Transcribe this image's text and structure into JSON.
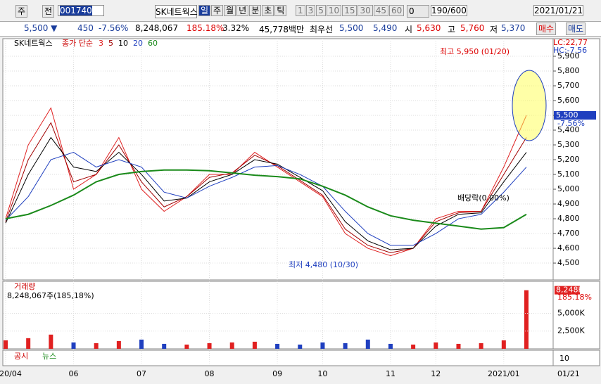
{
  "toolbar": {
    "market": "주",
    "period_type": "전",
    "code": "001740",
    "name": "SK네트웍스",
    "tabs": [
      "일",
      "주",
      "월",
      "년",
      "분",
      "초",
      "틱"
    ],
    "numbers": [
      "1",
      "3",
      "5",
      "10",
      "15",
      "30",
      "45",
      "60"
    ],
    "zero": "0",
    "count": "190/600",
    "date": "2021/01/21"
  },
  "quote": {
    "price": "5,500 ▼",
    "change": "450",
    "change_pct": "-7.56%",
    "volume": "8,248,067",
    "vol_ratio": "185.18%",
    "turnover": "3.32%",
    "amount": "45,778백만",
    "best_label": "최우선",
    "ask": "5,500",
    "bid": "5,490",
    "open_label": "시",
    "open": "5,630",
    "high_label": "고",
    "high": "5,760",
    "low_label": "저",
    "low": "5,370",
    "buy": "매수",
    "sell": "매도"
  },
  "chart_data": [
    {
      "type": "line",
      "title": "SK네트웍스",
      "subtitle": "종가 단순",
      "categories": [
        "2020/04",
        null,
        null,
        "06",
        null,
        null,
        "07",
        null,
        null,
        "08",
        null,
        null,
        "09",
        null,
        "10",
        null,
        null,
        "11",
        null,
        "12",
        null,
        null,
        "2021/01",
        null
      ],
      "series": [
        {
          "name": "3",
          "color": "#e02020",
          "values": [
            4800,
            5300,
            5550,
            5000,
            5100,
            5350,
            5000,
            4850,
            4950,
            5100,
            5100,
            5250,
            5150,
            5050,
            4950,
            4700,
            4600,
            4550,
            4600,
            4800,
            4850,
            4850,
            5150,
            5500
          ]
        },
        {
          "name": "5",
          "color": "#a00000",
          "values": [
            4780,
            5200,
            5450,
            5050,
            5100,
            5300,
            5050,
            4880,
            4950,
            5080,
            5110,
            5230,
            5160,
            5060,
            4960,
            4730,
            4620,
            4570,
            4600,
            4780,
            4840,
            4850,
            5100,
            5350
          ]
        },
        {
          "name": "10",
          "color": "#000000",
          "values": [
            4770,
            5100,
            5350,
            5150,
            5120,
            5250,
            5100,
            4920,
            4940,
            5050,
            5100,
            5200,
            5170,
            5080,
            4990,
            4780,
            4650,
            4590,
            4600,
            4750,
            4830,
            4840,
            5050,
            5250
          ]
        },
        {
          "name": "20",
          "color": "#1f3fbf",
          "values": [
            4790,
            4950,
            5200,
            5250,
            5150,
            5200,
            5150,
            4980,
            4940,
            5020,
            5080,
            5150,
            5160,
            5100,
            5020,
            4850,
            4700,
            4620,
            4620,
            4700,
            4800,
            4830,
            4980,
            5150
          ]
        },
        {
          "name": "60",
          "color": "#1a8a1a",
          "values": [
            4800,
            4830,
            4890,
            4960,
            5050,
            5100,
            5120,
            5130,
            5130,
            5125,
            5110,
            5095,
            5085,
            5070,
            5020,
            4960,
            4880,
            4820,
            4790,
            4770,
            4750,
            4730,
            4740,
            4830
          ]
        }
      ],
      "ylim": [
        4386,
        6019
      ],
      "yticks": [
        {
          "value": 4500,
          "label": "4,500"
        },
        {
          "value": 4600,
          "label": "4,600"
        },
        {
          "value": 4700,
          "label": "4,700"
        },
        {
          "value": 4800,
          "label": "4,800"
        },
        {
          "value": 4900,
          "label": "4,900"
        },
        {
          "value": 5000,
          "label": "5,000"
        },
        {
          "value": 5100,
          "label": "5,100"
        },
        {
          "value": 5200,
          "label": "5,200"
        },
        {
          "value": 5300,
          "label": "5,300"
        },
        {
          "value": 5400,
          "label": "5,400"
        },
        {
          "value": 5500,
          "label": "5,500"
        },
        {
          "value": 5600,
          "label": "5,600"
        },
        {
          "value": 5700,
          "label": "5,700"
        },
        {
          "value": 5800,
          "label": "5,800"
        },
        {
          "value": 5900,
          "label": "5,900"
        }
      ],
      "grid": true,
      "annotations": {
        "high": "최고 5,950 (01/20)",
        "low": "최저 4,480 (10/30)",
        "dividend": "배당락(0.00%)",
        "lc": "LC:22,77",
        "hc": "HC:-7.56",
        "last": "5,500",
        "last_pct": "-7.56%"
      }
    },
    {
      "type": "bar",
      "title": "거래량",
      "subtitle": "8,248,067주(185,18%)",
      "values": [
        1200,
        1500,
        2000,
        900,
        800,
        1100,
        1300,
        700,
        600,
        800,
        900,
        1000,
        700,
        600,
        900,
        800,
        1300,
        700,
        600,
        900,
        700,
        800,
        1200,
        8248
      ],
      "value_labels": [
        null,
        null,
        null,
        null,
        null,
        null,
        null,
        null,
        null,
        null,
        null,
        null,
        null,
        null,
        null,
        null,
        null,
        null,
        null,
        null,
        null,
        null,
        null,
        "8,248K"
      ],
      "ylim": [
        0,
        9500
      ],
      "yticks": [
        {
          "value": 2500,
          "label": "2,500K"
        },
        {
          "value": 5000,
          "label": "5,000K"
        }
      ],
      "annotation": "185.18%"
    }
  ],
  "bottom": {
    "tabs": [
      "공시",
      "뉴스"
    ],
    "scale": "10",
    "last_date": "01/21"
  }
}
